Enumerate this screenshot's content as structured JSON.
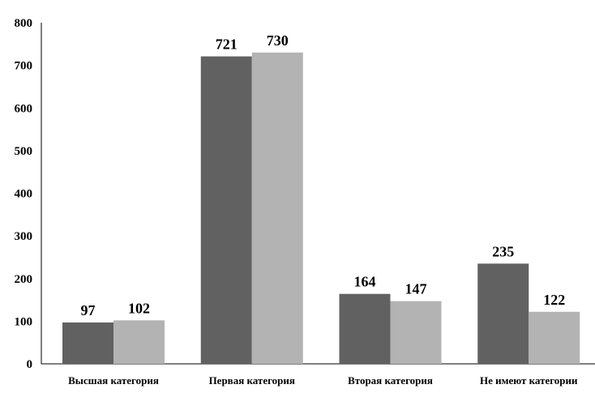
{
  "chart_data": {
    "type": "bar",
    "categories": [
      "Высшая категория",
      "Первая категория",
      "Вторая категория",
      "Не имеют категории"
    ],
    "series": [
      {
        "values": [
          97,
          721,
          164,
          235
        ],
        "color": "#616161"
      },
      {
        "values": [
          102,
          730,
          147,
          122
        ],
        "color": "#b3b3b3"
      }
    ],
    "yticks": [
      0,
      100,
      200,
      300,
      400,
      500,
      600,
      700,
      800
    ],
    "ylim": [
      0,
      800
    ],
    "title": "",
    "xlabel": "",
    "ylabel": "",
    "grid": false,
    "legend": "none"
  }
}
